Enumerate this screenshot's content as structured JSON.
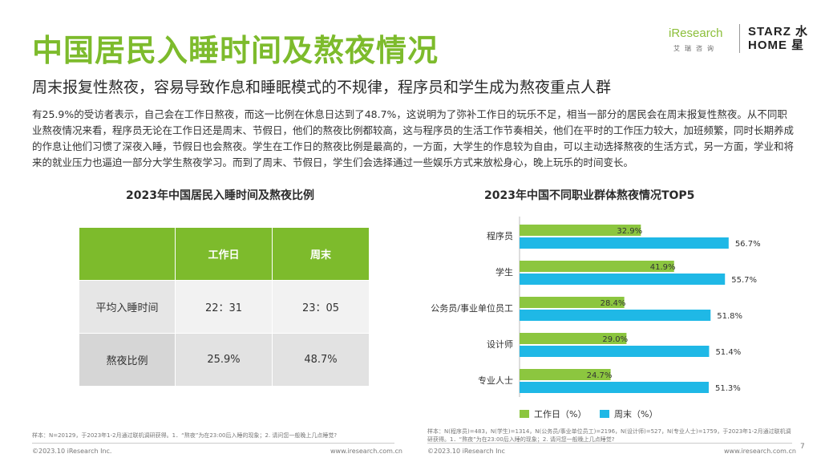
{
  "header": {
    "title": "中国居民入睡时间及熬夜情况",
    "subtitle": "周末报复性熬夜，容易导致作息和睡眠模式的不规律，程序员和学生成为熬夜重点人群"
  },
  "logos": {
    "iresearch_word": "iResearch",
    "iresearch_cn": "艾瑞咨询",
    "starz_line1": "STARZ 水",
    "starz_line2": "HOME 星"
  },
  "intro": "有25.9%的受访者表示，自己会在工作日熬夜，而这一比例在休息日达到了48.7%，这说明为了弥补工作日的玩乐不足，相当一部分的居民会在周末报复性熬夜。从不同职业熬夜情况来看，程序员无论在工作日还是周末、节假日，他们的熬夜比例都较高，这与程序员的生活工作节奏相关，他们在平时的工作压力较大，加班频繁，同时长期养成的作息让他们习惯了深夜入睡，节假日也会熬夜。学生在工作日的熬夜比例是最高的，一方面，大学生的作息较为自由，可以主动选择熬夜的生活方式，另一方面，学业和将来的就业压力也逼迫一部分大学生熬夜学习。而到了周末、节假日，学生们会选择通过一些娱乐方式来放松身心，晚上玩乐的时间变长。",
  "left": {
    "title": "2023年中国居民入睡时间及熬夜比例",
    "table": {
      "headers": [
        "",
        "工作日",
        "周末"
      ],
      "rows": [
        [
          "平均入睡时间",
          "22：31",
          "23：05"
        ],
        [
          "熬夜比例",
          "25.9%",
          "48.7%"
        ]
      ]
    },
    "note": "样本：N=20129，于2023年1-2月通过联机调研获得。1．“熬夜”为在23:00后入睡的现象；2. 请问您一般晚上几点睡觉?",
    "footer_left": "©2023.10 iResearch Inc.",
    "footer_right": "www.iresearch.com.cn"
  },
  "right": {
    "title": "2023年中国不同职业群体熬夜情况TOP5",
    "note": "样本：N(程序员)=483，N(学生)=1314，N(公务员/事业单位员工)=2196，N(设计师)=527，N(专业人士)=1759，于2023年1-2月通过联机调研获得。1．“熬夜”为在23:00后入睡的现象；2. 请问您一般晚上几点睡觉?",
    "footer_left": "©2023.10 iResearch Inc",
    "footer_right": "www.iresearch.com.cn"
  },
  "chart_data": {
    "type": "bar",
    "orientation": "horizontal",
    "categories": [
      "程序员",
      "学生",
      "公务员/事业单位员工",
      "设计师",
      "专业人士"
    ],
    "series": [
      {
        "name": "工作日（%）",
        "values": [
          32.9,
          41.9,
          28.4,
          29.0,
          24.7
        ],
        "color": "#8cc63f"
      },
      {
        "name": "周末（%）",
        "values": [
          56.7,
          55.7,
          51.8,
          51.4,
          51.3
        ],
        "color": "#1fb8e6"
      }
    ],
    "value_labels": [
      [
        "32.9%",
        "41.9%",
        "28.4%",
        "29.0%",
        "24.7%"
      ],
      [
        "56.7%",
        "55.7%",
        "51.8%",
        "51.4%",
        "51.3%"
      ]
    ],
    "xlim": [
      0,
      70
    ],
    "grid": false,
    "legend": "bottom"
  },
  "page_number": "7"
}
